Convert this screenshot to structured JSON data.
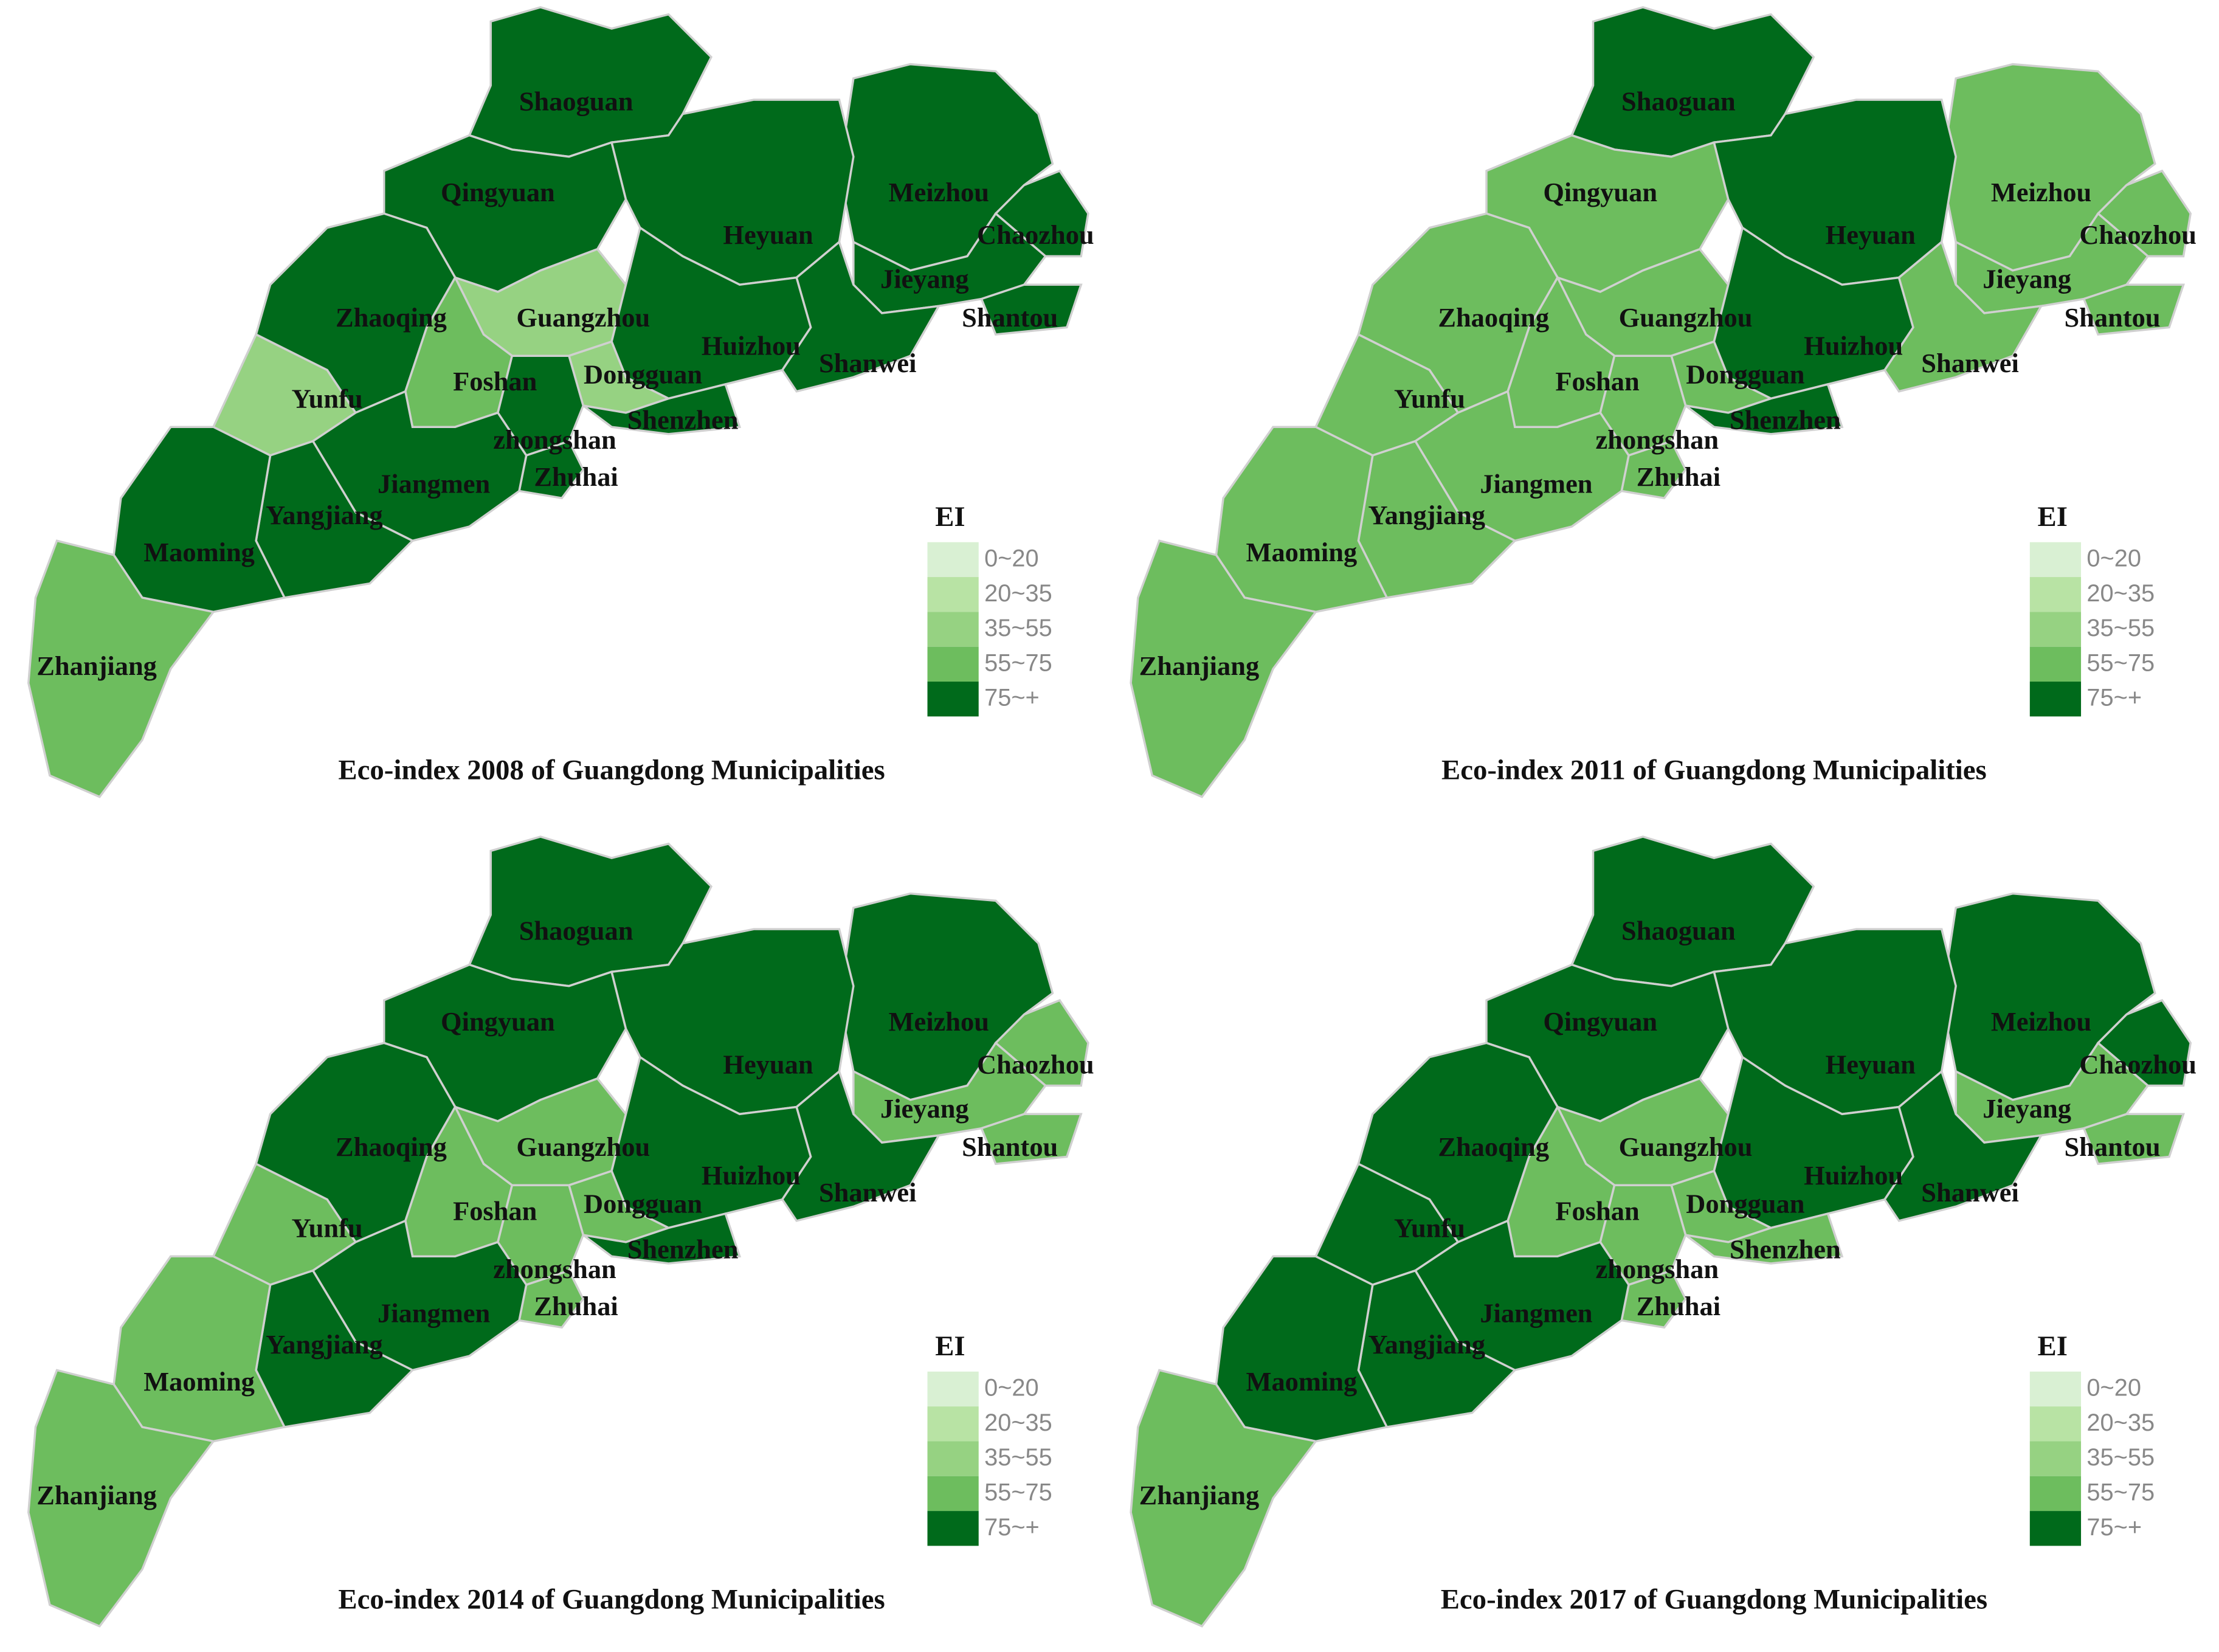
{
  "regions": [
    "Shaoguan",
    "Qingyuan",
    "Meizhou",
    "Chaozhou",
    "Heyuan",
    "Zhaoqing",
    "Guangzhou",
    "Huizhou",
    "Jieyang",
    "Shantou",
    "Shanwei",
    "Dongguan",
    "Shenzhen",
    "Foshan",
    "Yunfu",
    "zhongshan",
    "Zhuhai",
    "Jiangmen",
    "Yangjiang",
    "Maoming",
    "Zhanjiang"
  ],
  "legend": {
    "title": "EI",
    "classes": [
      {
        "label": "0~20",
        "color": "#d9f0d3"
      },
      {
        "label": "20~35",
        "color": "#b8e3a4"
      },
      {
        "label": "35~55",
        "color": "#96d282"
      },
      {
        "label": "55~75",
        "color": "#6dbd5e"
      },
      {
        "label": "75~+",
        "color": "#006a1b"
      }
    ]
  },
  "maps": [
    {
      "title": "Eco-index 2008 of Guangdong Municipalities",
      "classes": [
        "75~+",
        "75~+",
        "75~+",
        "75~+",
        "75~+",
        "75~+",
        "35~55",
        "75~+",
        "75~+",
        "75~+",
        "75~+",
        "35~55",
        "75~+",
        "55~75",
        "35~55",
        "75~+",
        "75~+",
        "75~+",
        "75~+",
        "75~+",
        "55~75"
      ]
    },
    {
      "title": "Eco-index 2011 of Guangdong Municipalities",
      "classes": [
        "75~+",
        "55~75",
        "55~75",
        "55~75",
        "75~+",
        "55~75",
        "55~75",
        "75~+",
        "55~75",
        "55~75",
        "55~75",
        "55~75",
        "75~+",
        "55~75",
        "55~75",
        "55~75",
        "55~75",
        "55~75",
        "55~75",
        "55~75",
        "55~75"
      ]
    },
    {
      "title": "Eco-index 2014 of Guangdong Municipalities",
      "classes": [
        "75~+",
        "75~+",
        "75~+",
        "55~75",
        "75~+",
        "75~+",
        "55~75",
        "75~+",
        "55~75",
        "55~75",
        "75~+",
        "55~75",
        "75~+",
        "55~75",
        "55~75",
        "55~75",
        "55~75",
        "75~+",
        "75~+",
        "55~75",
        "55~75"
      ]
    },
    {
      "title": "Eco-index 2017 of Guangdong Municipalities",
      "classes": [
        "75~+",
        "75~+",
        "75~+",
        "75~+",
        "75~+",
        "75~+",
        "55~75",
        "75~+",
        "55~75",
        "55~75",
        "75~+",
        "55~75",
        "55~75",
        "55~75",
        "75~+",
        "55~75",
        "55~75",
        "75~+",
        "75~+",
        "75~+",
        "55~75"
      ]
    }
  ]
}
